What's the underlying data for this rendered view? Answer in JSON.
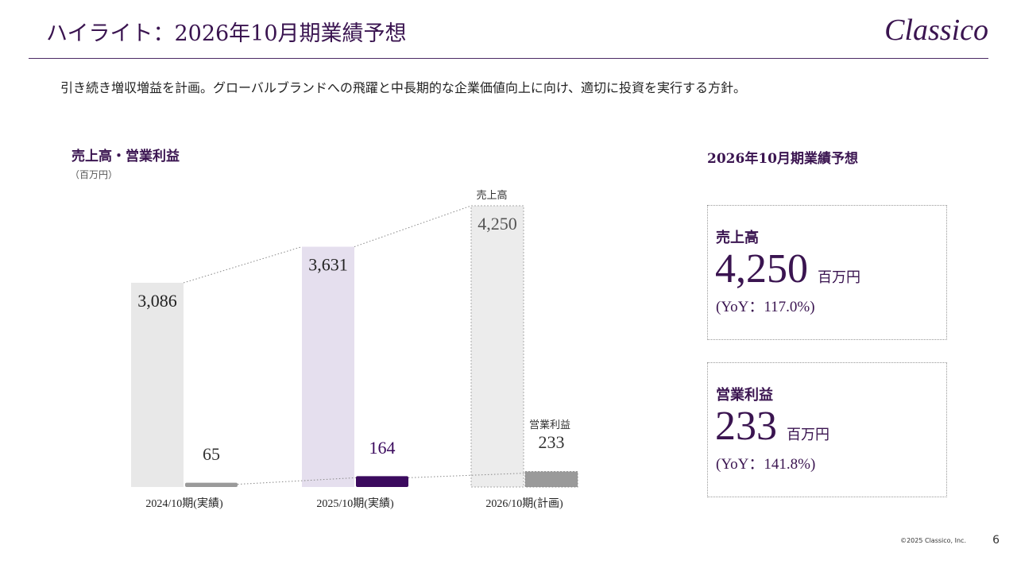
{
  "header": {
    "title": "ハイライト：2026年10月期業績予想",
    "logo": "Classico"
  },
  "lead": "引き続き増収増益を計画。グローバルブランドへの飛躍と中長期的な企業価値向上に向け、適切に投資を実行する方針。",
  "chart_data": {
    "type": "bar",
    "title": "売上高・営業利益",
    "unit": "（百万円）",
    "categories": [
      "2024/10期(実績)",
      "2025/10期(実績)",
      "2026/10期(計画)"
    ],
    "series": [
      {
        "name": "売上高",
        "values": [
          3086,
          3631,
          4250
        ],
        "labels": [
          "3,086",
          "3,631",
          "4,250"
        ],
        "colors": [
          "#e8e8e8",
          "#e5dfee",
          "#ececec"
        ]
      },
      {
        "name": "営業利益",
        "values": [
          65,
          164,
          233
        ],
        "labels": [
          "65",
          "164",
          "233"
        ],
        "colors": [
          "#9a9a9a",
          "#3b0a5e",
          "#9a9a9a"
        ]
      }
    ],
    "forecast_category": "2026/10期(計画)",
    "ylim": [
      0,
      4250
    ],
    "grid": false
  },
  "panel": {
    "title": "2026年10月期業績予想",
    "cards": [
      {
        "label": "売上高",
        "value": "4,250",
        "unit": "百万円",
        "yoy": "(YoY：117.0%)"
      },
      {
        "label": "営業利益",
        "value": "233",
        "unit": "百万円",
        "yoy": "(YoY：141.8%)"
      }
    ]
  },
  "footer": {
    "copyright": "©2025 Classico, Inc.",
    "page": "6"
  }
}
